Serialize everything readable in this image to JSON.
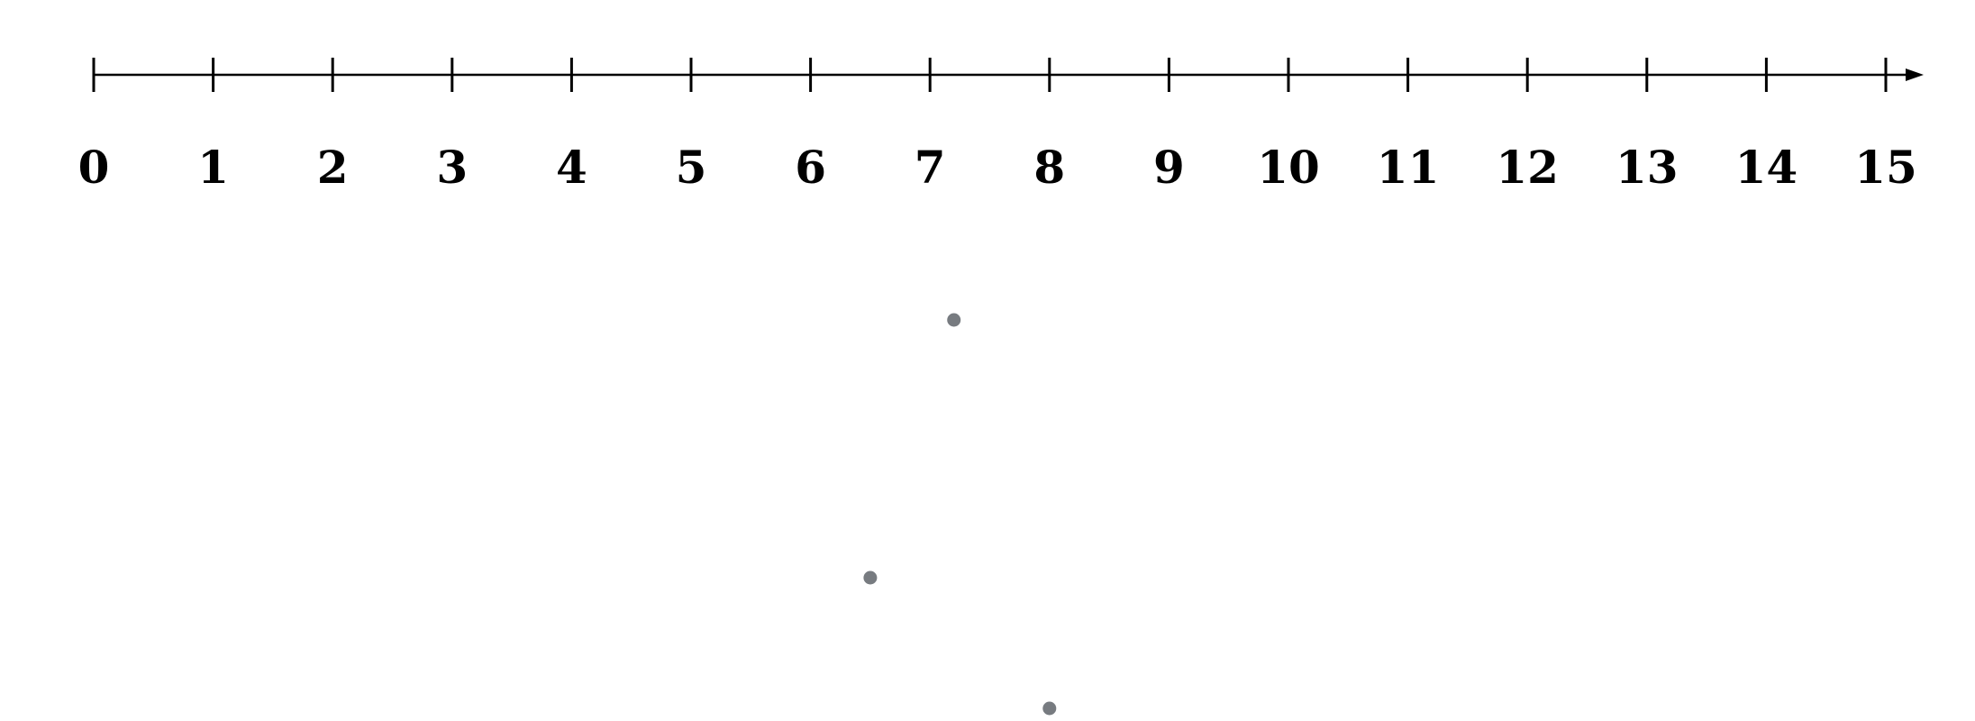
{
  "number_line": {
    "min": 0,
    "max": 15,
    "step": 1,
    "tick_labels": [
      "0",
      "1",
      "2",
      "3",
      "4",
      "5",
      "6",
      "7",
      "8",
      "9",
      "10",
      "11",
      "12",
      "13",
      "14",
      "15"
    ],
    "line_color": "#000000"
  },
  "dots": {
    "color": "#777b80",
    "positions": [
      7.2,
      6.5,
      8.0
    ]
  }
}
